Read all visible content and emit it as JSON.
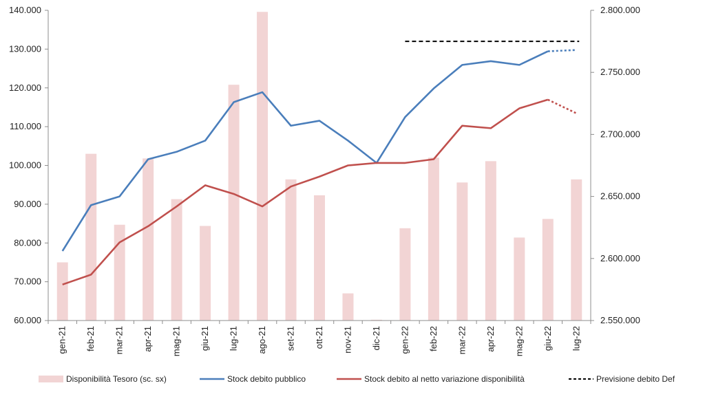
{
  "chart_data": {
    "type": "bar",
    "categories": [
      "gen-21",
      "feb-21",
      "mar-21",
      "apr-21",
      "mag-21",
      "giu-21",
      "lug-21",
      "ago-21",
      "set-21",
      "ott-21",
      "nov-21",
      "dic-21",
      "gen-22",
      "feb-22",
      "mar-22",
      "apr-22",
      "mag-22",
      "giu-22",
      "lug-22"
    ],
    "y_left": {
      "min": 60000,
      "max": 140000,
      "ticks": [
        "60.000",
        "70.000",
        "80.000",
        "90.000",
        "100.000",
        "110.000",
        "120.000",
        "130.000",
        "140.000"
      ]
    },
    "y_right": {
      "min": 2550000,
      "max": 2800000,
      "ticks": [
        "2.550.000",
        "2.600.000",
        "2.650.000",
        "2.700.000",
        "2.750.000",
        "2.800.000"
      ]
    },
    "series": [
      {
        "name": "Disponibilità Tesoro (sc. sx)",
        "type": "bar",
        "axis": "left",
        "color": "#f2d4d4",
        "values": [
          75000,
          103000,
          84700,
          101800,
          91300,
          84400,
          120800,
          139600,
          96400,
          92300,
          67000,
          60200,
          83800,
          102000,
          95600,
          101100,
          81400,
          86200,
          96400
        ]
      },
      {
        "name": "Stock debito pubblico",
        "type": "line",
        "axis": "right",
        "color": "#4a7ebb",
        "values": [
          2606000,
          2643000,
          2650000,
          2680000,
          2686000,
          2695000,
          2726000,
          2734000,
          2707000,
          2711000,
          2695000,
          2677000,
          2714000,
          2737000,
          2756000,
          2759000,
          2756000,
          2767000,
          null
        ],
        "forecast": [
          {
            "x": "giu-22",
            "y": 2767000
          },
          {
            "x": "lug-22",
            "y": 2768000
          }
        ]
      },
      {
        "name": "Stock debito al netto variazione disponibilità",
        "type": "line",
        "axis": "right",
        "color": "#c0504d",
        "values": [
          2579000,
          2587000,
          2613000,
          2626000,
          2642000,
          2659000,
          2652000,
          2642000,
          2658000,
          2666000,
          2675000,
          2677000,
          2677000,
          2680000,
          2707000,
          2705000,
          2721000,
          2728000,
          null
        ],
        "forecast": [
          {
            "x": "giu-22",
            "y": 2728000
          },
          {
            "x": "lug-22",
            "y": 2717000
          }
        ]
      },
      {
        "name": "Previsione debito Def",
        "type": "line",
        "axis": "right",
        "color": "#000000",
        "dash": true,
        "points": [
          {
            "x": "gen-22",
            "y": 2775000
          },
          {
            "x": "lug-22",
            "y": 2775000
          }
        ]
      }
    ],
    "grid": false,
    "legend_position": "bottom"
  }
}
